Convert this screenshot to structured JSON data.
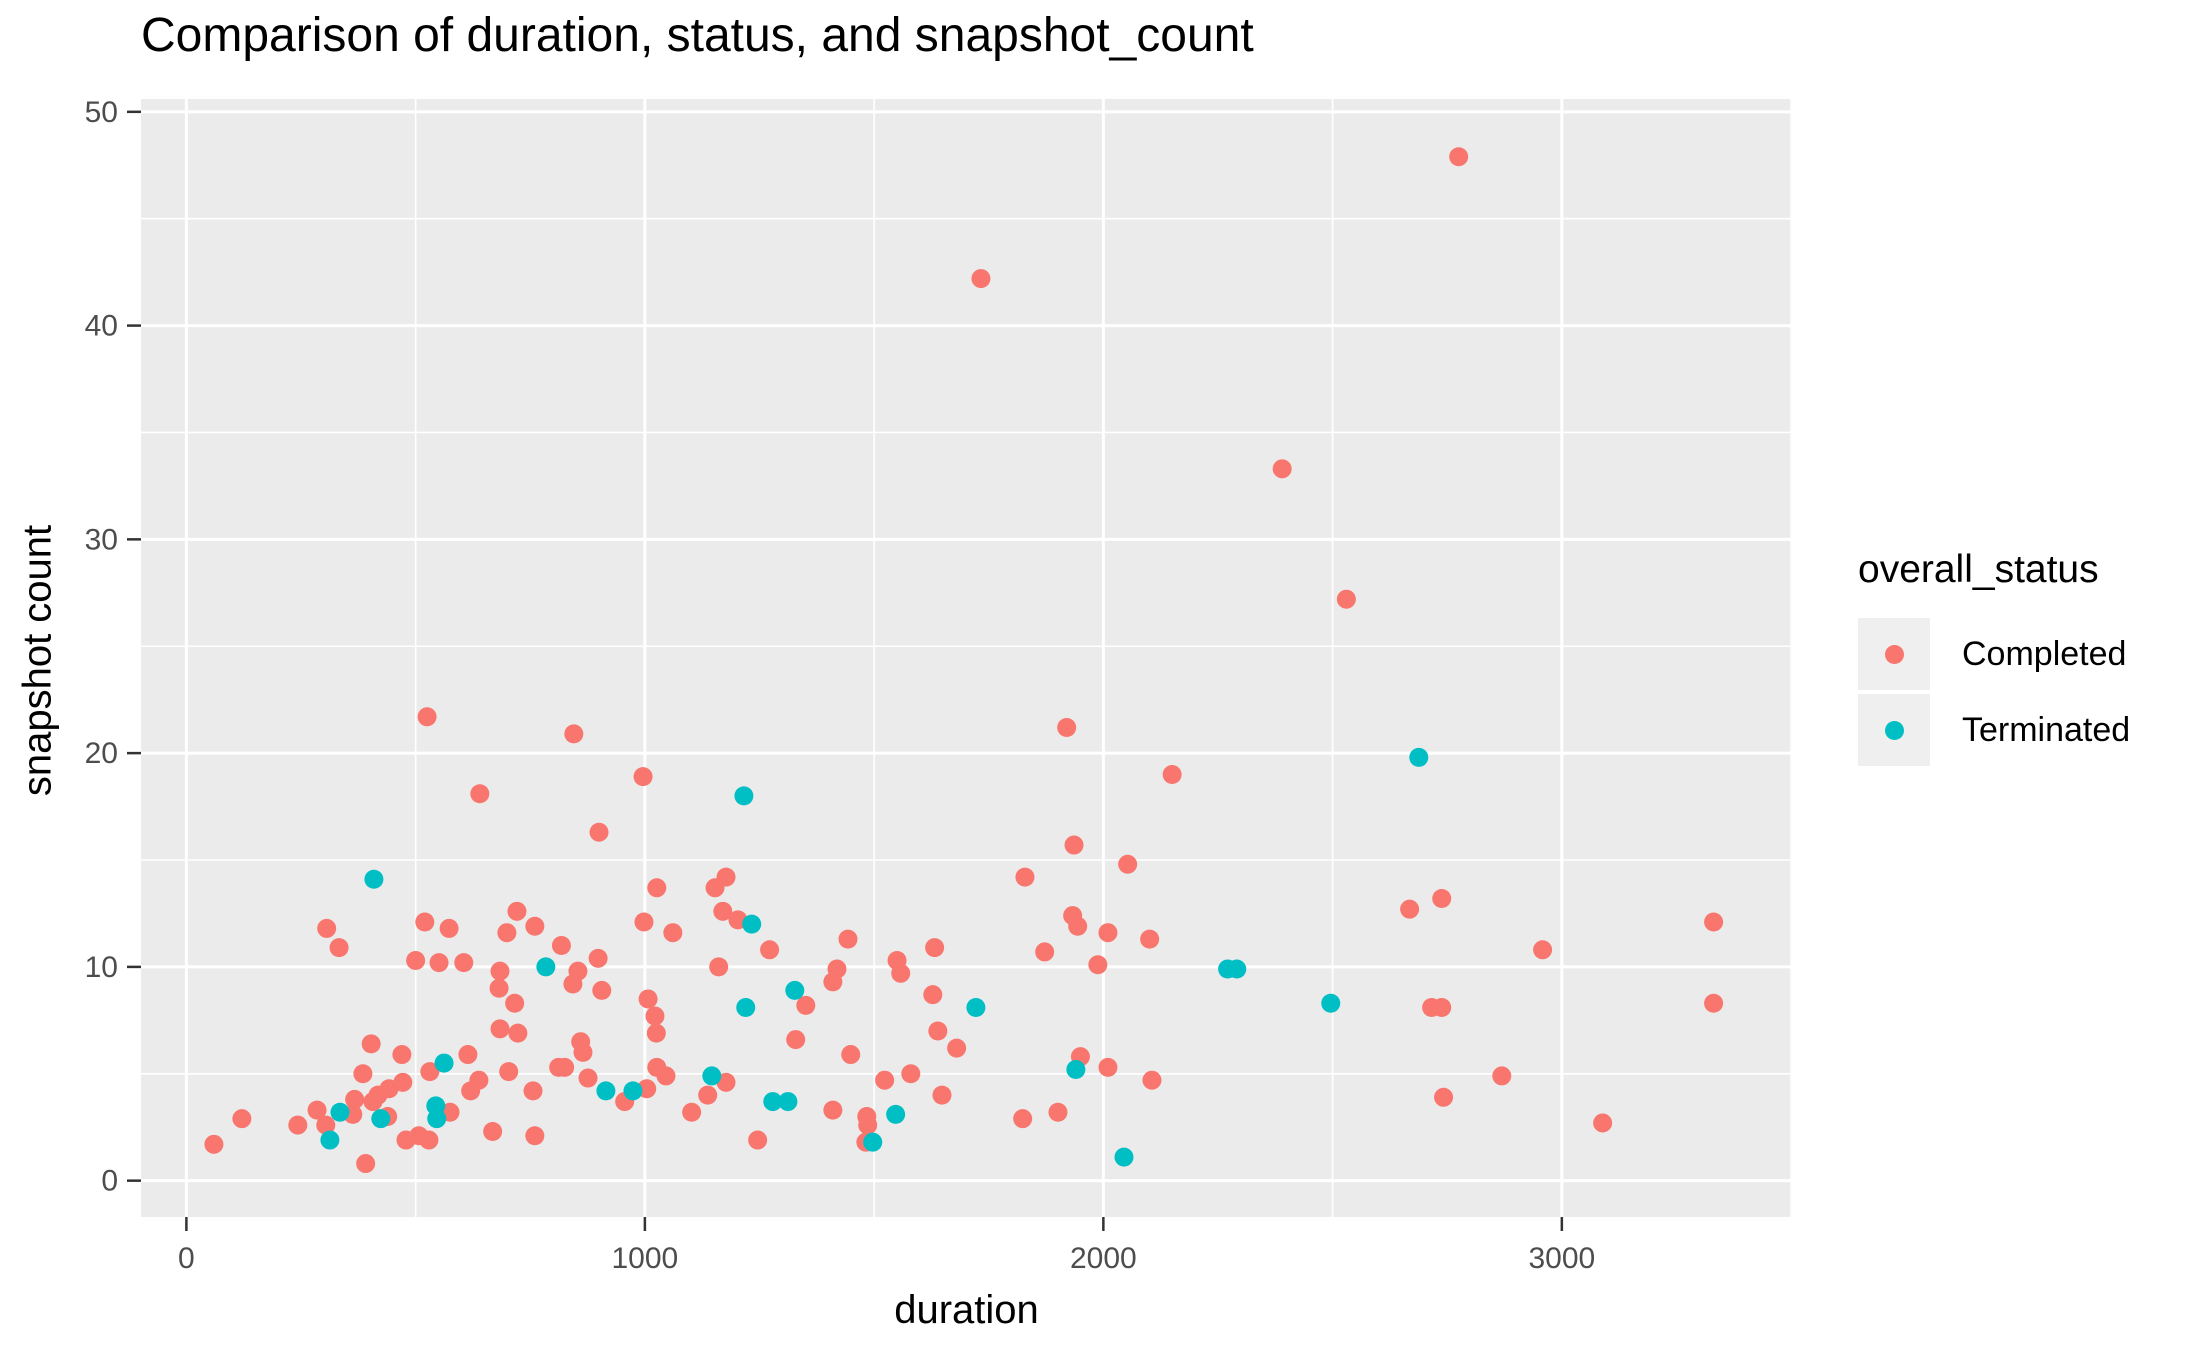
{
  "title": "Comparison of duration, status, and snapshot_count",
  "legend": {
    "title": "overall_status",
    "items": [
      {
        "label": "Completed",
        "color": "#F8766D"
      },
      {
        "label": "Terminated",
        "color": "#00BFC4"
      }
    ]
  },
  "panel": {
    "background": "#EBEBEB",
    "grid_color": "#FFFFFF",
    "tick_color": "#333333",
    "tick_label_color": "#4D4D4D"
  },
  "chart_data": {
    "type": "scatter",
    "title": "Comparison of duration, status, and snapshot_count",
    "xlabel": "duration",
    "ylabel": "snapshot count",
    "xlim": [
      -99,
      3502
    ],
    "ylim": [
      -1.7,
      50.6
    ],
    "x_ticks": [
      0,
      1000,
      2000,
      3000
    ],
    "x_minor": [
      500,
      1500,
      2500,
      3500
    ],
    "y_ticks": [
      0,
      10,
      20,
      30,
      40,
      50
    ],
    "y_minor": [
      5,
      15,
      25,
      35,
      45
    ],
    "grid": true,
    "legend_position": "right",
    "series": [
      {
        "name": "Completed",
        "color": "#F8766D",
        "points": [
          [
            2775,
            47.9
          ],
          [
            1733,
            42.2
          ],
          [
            2390,
            33.3
          ],
          [
            2530,
            27.2
          ],
          [
            525,
            21.7
          ],
          [
            845,
            20.9
          ],
          [
            1920,
            21.2
          ],
          [
            2150,
            19.0
          ],
          [
            996,
            18.9
          ],
          [
            640,
            18.1
          ],
          [
            900,
            16.3
          ],
          [
            1936,
            15.7
          ],
          [
            2053,
            14.8
          ],
          [
            1829,
            14.2
          ],
          [
            306,
            11.8
          ],
          [
            333,
            10.9
          ],
          [
            520,
            12.1
          ],
          [
            573,
            11.8
          ],
          [
            721,
            12.6
          ],
          [
            699,
            11.6
          ],
          [
            760,
            11.9
          ],
          [
            818,
            11.0
          ],
          [
            500,
            10.3
          ],
          [
            551,
            10.2
          ],
          [
            605,
            10.2
          ],
          [
            684,
            9.8
          ],
          [
            682,
            9.0
          ],
          [
            716,
            8.3
          ],
          [
            684,
            7.1
          ],
          [
            723,
            6.9
          ],
          [
            1026,
            13.7
          ],
          [
            1153,
            13.7
          ],
          [
            1177,
            14.2
          ],
          [
            1170,
            12.6
          ],
          [
            1203,
            12.2
          ],
          [
            998,
            12.1
          ],
          [
            1061,
            11.6
          ],
          [
            1272,
            10.8
          ],
          [
            1443,
            11.3
          ],
          [
            1161,
            10.0
          ],
          [
            1550,
            10.3
          ],
          [
            1558,
            9.7
          ],
          [
            1419,
            9.9
          ],
          [
            1410,
            9.3
          ],
          [
            1351,
            8.2
          ],
          [
            1632,
            10.9
          ],
          [
            1628,
            8.7
          ],
          [
            1639,
            7.0
          ],
          [
            1329,
            6.6
          ],
          [
            860,
            6.5
          ],
          [
            854,
            9.8
          ],
          [
            843,
            9.2
          ],
          [
            898,
            10.4
          ],
          [
            906,
            8.9
          ],
          [
            1007,
            8.5
          ],
          [
            1022,
            7.7
          ],
          [
            1025,
            6.9
          ],
          [
            60,
            1.7
          ],
          [
            121,
            2.9
          ],
          [
            243,
            2.6
          ],
          [
            285,
            3.3
          ],
          [
            304,
            2.6
          ],
          [
            363,
            3.1
          ],
          [
            367,
            3.8
          ],
          [
            385,
            5.0
          ],
          [
            407,
            3.7
          ],
          [
            439,
            3.0
          ],
          [
            418,
            4.0
          ],
          [
            442,
            4.3
          ],
          [
            472,
            4.6
          ],
          [
            391,
            0.8
          ],
          [
            531,
            5.1
          ],
          [
            614,
            5.9
          ],
          [
            638,
            4.7
          ],
          [
            703,
            5.1
          ],
          [
            620,
            4.2
          ],
          [
            575,
            3.2
          ],
          [
            668,
            2.3
          ],
          [
            760,
            2.1
          ],
          [
            756,
            4.2
          ],
          [
            812,
            5.3
          ],
          [
            479,
            1.9
          ],
          [
            507,
            2.1
          ],
          [
            529,
            1.9
          ],
          [
            470,
            5.9
          ],
          [
            403,
            6.4
          ],
          [
            825,
            5.3
          ],
          [
            865,
            6.0
          ],
          [
            876,
            4.8
          ],
          [
            956,
            3.7
          ],
          [
            1004,
            4.3
          ],
          [
            1026,
            5.3
          ],
          [
            1046,
            4.9
          ],
          [
            1102,
            3.2
          ],
          [
            1137,
            4.0
          ],
          [
            1177,
            4.6
          ],
          [
            1246,
            1.9
          ],
          [
            1410,
            3.3
          ],
          [
            1449,
            5.9
          ],
          [
            1484,
            3.0
          ],
          [
            1486,
            2.6
          ],
          [
            1482,
            1.8
          ],
          [
            1523,
            4.7
          ],
          [
            1580,
            5.0
          ],
          [
            1648,
            4.0
          ],
          [
            1680,
            6.2
          ],
          [
            1950,
            5.8
          ],
          [
            2010,
            5.3
          ],
          [
            2106,
            4.7
          ],
          [
            1824,
            2.9
          ],
          [
            1901,
            3.2
          ],
          [
            1933,
            12.4
          ],
          [
            1944,
            11.9
          ],
          [
            2010,
            11.6
          ],
          [
            2101,
            11.3
          ],
          [
            1872,
            10.7
          ],
          [
            1988,
            10.1
          ],
          [
            2668,
            12.7
          ],
          [
            2738,
            13.2
          ],
          [
            2958,
            10.8
          ],
          [
            3331,
            12.1
          ],
          [
            2716,
            8.1
          ],
          [
            2738,
            8.1
          ],
          [
            3331,
            8.3
          ],
          [
            2869,
            4.9
          ],
          [
            2742,
            3.9
          ],
          [
            3089,
            2.7
          ]
        ]
      },
      {
        "name": "Terminated",
        "color": "#00BFC4",
        "points": [
          [
            409,
            14.1
          ],
          [
            784,
            10.0
          ],
          [
            1233,
            12.0
          ],
          [
            1327,
            8.9
          ],
          [
            1220,
            8.1
          ],
          [
            1722,
            8.1
          ],
          [
            313,
            1.9
          ],
          [
            335,
            3.2
          ],
          [
            424,
            2.9
          ],
          [
            562,
            5.5
          ],
          [
            544,
            3.5
          ],
          [
            546,
            2.9
          ],
          [
            915,
            4.2
          ],
          [
            974,
            4.2
          ],
          [
            1146,
            4.9
          ],
          [
            1279,
            3.7
          ],
          [
            1312,
            3.7
          ],
          [
            1497,
            1.8
          ],
          [
            1547,
            3.1
          ],
          [
            2271,
            9.9
          ],
          [
            2291,
            9.9
          ],
          [
            2496,
            8.3
          ],
          [
            1940,
            5.2
          ],
          [
            2045,
            1.1
          ],
          [
            2688,
            19.8
          ],
          [
            1216,
            18.0
          ]
        ]
      }
    ]
  }
}
